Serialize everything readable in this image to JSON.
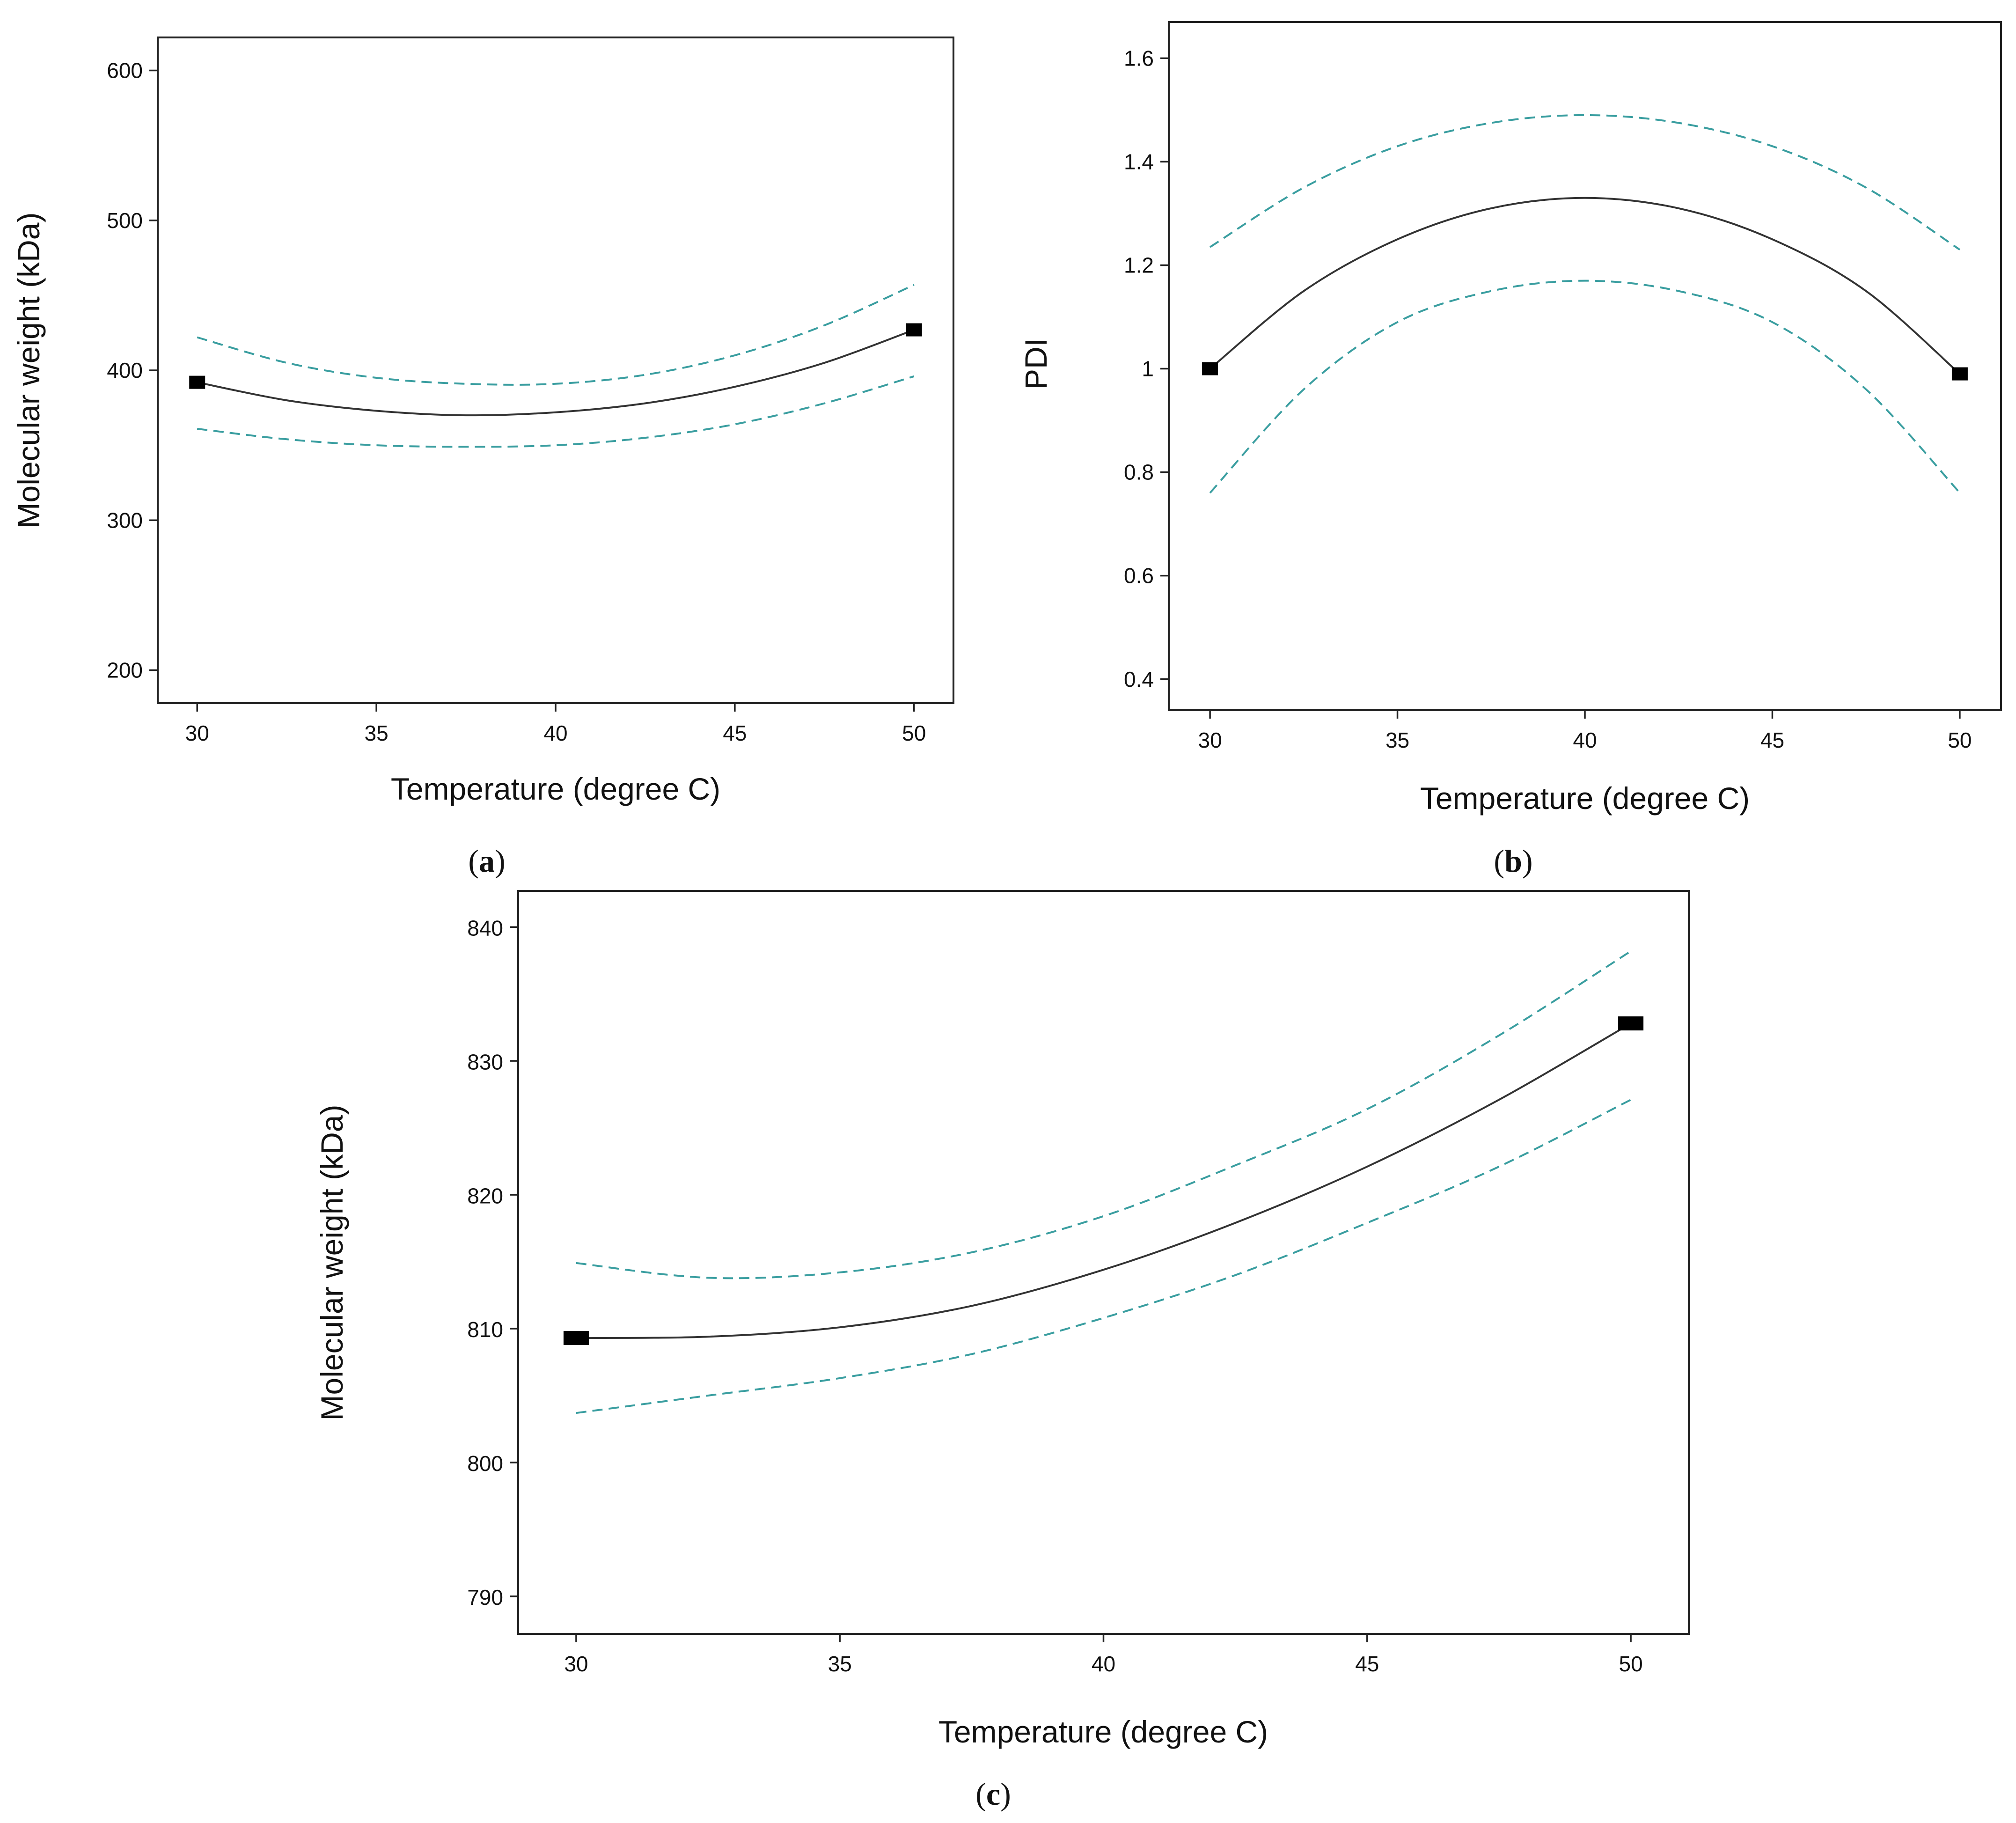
{
  "colors": {
    "fit": "#333333",
    "ci": "#3a9ea0",
    "marker": "#000000"
  },
  "chart_data": [
    {
      "id": "a",
      "type": "line",
      "panel_label_open": "(",
      "panel_label_letter": "a",
      "panel_label_close": ")",
      "xlabel": "Temperature  (degree C)",
      "ylabel": "Molecular weight (kDa)",
      "xlim": [
        28.9,
        51.1
      ],
      "ylim": [
        178,
        622
      ],
      "xticks": [
        30,
        35,
        40,
        45,
        50
      ],
      "yticks": [
        200,
        300,
        400,
        500,
        600
      ],
      "x": [
        30,
        32.5,
        35,
        37.5,
        40,
        42.5,
        45,
        47.5,
        50
      ],
      "series": [
        {
          "name": "fit",
          "values": [
            392,
            380,
            373,
            370,
            372,
            378,
            389,
            405,
            427
          ]
        },
        {
          "name": "upper 95% CI",
          "values": [
            422,
            405,
            395,
            391,
            391,
            397,
            410,
            430,
            457
          ]
        },
        {
          "name": "lower 95% CI",
          "values": [
            361,
            354,
            350,
            349,
            350,
            355,
            364,
            378,
            396
          ]
        }
      ],
      "points": [
        {
          "x": 30,
          "y": 392
        },
        {
          "x": 50,
          "y": 427
        }
      ]
    },
    {
      "id": "b",
      "type": "line",
      "panel_label_open": "(",
      "panel_label_letter": "b",
      "panel_label_close": ")",
      "xlabel": "Temperature  (degree C)",
      "ylabel": "PDI",
      "xlim": [
        28.9,
        51.1
      ],
      "ylim": [
        0.34,
        1.67
      ],
      "xticks": [
        30,
        35,
        40,
        45,
        50
      ],
      "yticks": [
        "0.4",
        "0.6",
        "0.8",
        "1",
        "1.2",
        "1.4",
        "1.6"
      ],
      "x": [
        30,
        32.5,
        35,
        37.5,
        40,
        42.5,
        45,
        47.5,
        50
      ],
      "series": [
        {
          "name": "fit",
          "values": [
            1.0,
            1.15,
            1.25,
            1.31,
            1.33,
            1.31,
            1.25,
            1.15,
            0.99
          ]
        },
        {
          "name": "upper 95% CI",
          "values": [
            1.235,
            1.35,
            1.43,
            1.475,
            1.49,
            1.475,
            1.43,
            1.35,
            1.23
          ]
        },
        {
          "name": "lower 95% CI",
          "values": [
            0.76,
            0.96,
            1.09,
            1.15,
            1.17,
            1.15,
            1.09,
            0.96,
            0.76
          ]
        }
      ],
      "points": [
        {
          "x": 30,
          "y": 1.0
        },
        {
          "x": 50,
          "y": 0.99
        }
      ]
    },
    {
      "id": "c",
      "type": "line",
      "panel_label_open": "(",
      "panel_label_letter": "c",
      "panel_label_close": ")",
      "xlabel": "Temperature  (degree C)",
      "ylabel": "Molecular weight (kDa)",
      "xlim": [
        28.9,
        51.1
      ],
      "ylim": [
        787.2,
        842.7
      ],
      "xticks": [
        30,
        35,
        40,
        45,
        50
      ],
      "yticks": [
        790,
        800,
        810,
        820,
        830,
        840
      ],
      "x": [
        30,
        32.5,
        35,
        37.5,
        40,
        42.5,
        45,
        47.5,
        50
      ],
      "series": [
        {
          "name": "fit",
          "values": [
            809.3,
            809.4,
            810.1,
            811.7,
            814.4,
            817.9,
            822.1,
            827.1,
            832.8
          ]
        },
        {
          "name": "upper 95% CI",
          "values": [
            814.9,
            813.8,
            814.2,
            815.7,
            818.4,
            822.2,
            826.4,
            831.9,
            838.2
          ]
        },
        {
          "name": "lower 95% CI",
          "values": [
            803.7,
            805.0,
            806.3,
            808.1,
            810.8,
            814.0,
            817.9,
            822.1,
            827.1
          ]
        }
      ],
      "points": [
        {
          "x": 30,
          "y": 809.3
        },
        {
          "x": 50,
          "y": 832.8
        }
      ]
    }
  ]
}
